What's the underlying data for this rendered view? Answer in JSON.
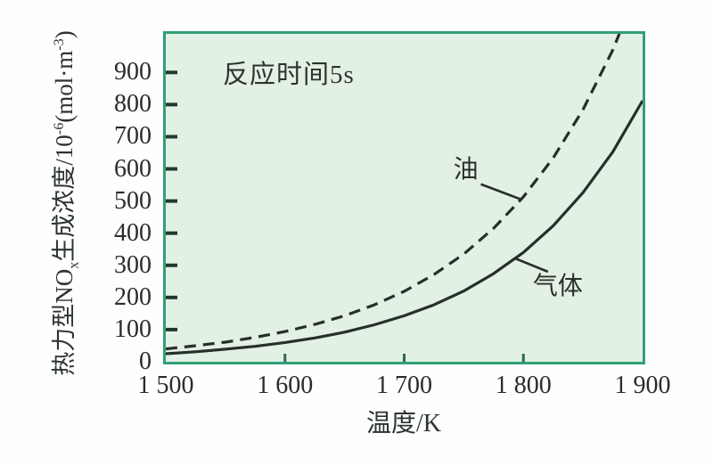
{
  "figure": {
    "annotation": "反应时间5s",
    "x_axis_title": "温度/K",
    "y_axis_title": {
      "p1": "热力型NO",
      "sub1": "x",
      "p2": "生成浓度/10",
      "sup1": "-6",
      "p3": "(mol·m",
      "sup2": "-3",
      "p4": ")"
    }
  },
  "chart_data": {
    "type": "line",
    "title": "",
    "annotation": "反应时间5s",
    "xlabel": "温度/K",
    "ylabel": "热力型NOx生成浓度/10⁻⁶(mol·m⁻³)",
    "xlim": [
      1500,
      1900
    ],
    "ylim": [
      0,
      1020
    ],
    "grid": false,
    "legend_position": "inline-curve-labels",
    "x_ticks": [
      {
        "v": 1500,
        "label": "1 500",
        "tick": false
      },
      {
        "v": 1600,
        "label": "1 600",
        "tick": true
      },
      {
        "v": 1700,
        "label": "1 700",
        "tick": true
      },
      {
        "v": 1800,
        "label": "1 800",
        "tick": true
      },
      {
        "v": 1900,
        "label": "1 900",
        "tick": false
      }
    ],
    "y_ticks": [
      {
        "v": 0,
        "label": "0",
        "tick": false
      },
      {
        "v": 100,
        "label": "100",
        "tick": true
      },
      {
        "v": 200,
        "label": "200",
        "tick": true
      },
      {
        "v": 300,
        "label": "300",
        "tick": true
      },
      {
        "v": 400,
        "label": "400",
        "tick": true
      },
      {
        "v": 500,
        "label": "500",
        "tick": true
      },
      {
        "v": 600,
        "label": "600",
        "tick": true
      },
      {
        "v": 700,
        "label": "700",
        "tick": true
      },
      {
        "v": 800,
        "label": "800",
        "tick": true
      },
      {
        "v": 900,
        "label": "900",
        "tick": true
      }
    ],
    "x": [
      1500,
      1525,
      1550,
      1575,
      1600,
      1625,
      1650,
      1675,
      1700,
      1725,
      1750,
      1775,
      1800,
      1825,
      1850,
      1875,
      1900
    ],
    "series": [
      {
        "name": "油",
        "key": "oil",
        "style": "dashed",
        "label_attach_T": 1798,
        "values": [
          40,
          50,
          61,
          76,
          94,
          116,
          143,
          177,
          219,
          271,
          335,
          415,
          513,
          634,
          784,
          970,
          1199
        ]
      },
      {
        "name": "气体",
        "key": "gas",
        "style": "solid",
        "label_attach_T": 1793,
        "values": [
          25,
          31,
          39,
          48,
          60,
          74,
          92,
          115,
          143,
          177,
          220,
          274,
          340,
          423,
          526,
          653,
          812
        ]
      }
    ],
    "colors": {
      "plot_bg": "#e3f0e4",
      "frame": "#30a078",
      "curve": "#26302a",
      "left_tick": "#1f3b2f",
      "bottom_tick": "#2b6b50",
      "text": "#2b2b2b"
    }
  }
}
